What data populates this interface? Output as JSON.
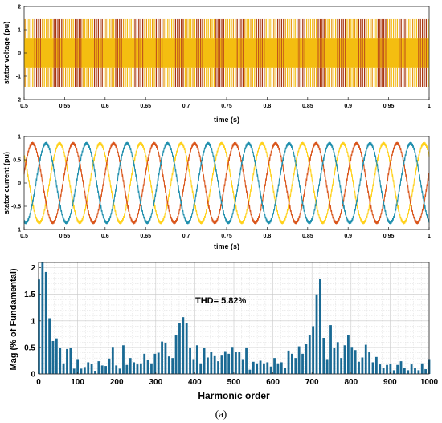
{
  "caption": "(a)",
  "colors": {
    "phase_a": "#ffd11a",
    "phase_b": "#d9541a",
    "phase_c": "#1f8fad",
    "pwm_light": "#f4be10",
    "pwm_dark": "#a8350f",
    "bar": "#1a6a94",
    "thd_text": "#000000"
  },
  "chart_data": [
    {
      "type": "line",
      "title": "",
      "xlabel": "time (s)",
      "ylabel": "stator voltage (pu)",
      "xlim": [
        0.5,
        1.0
      ],
      "ylim": [
        -2,
        2
      ],
      "xticks": [
        "0.5",
        "0.55",
        "0.6",
        "0.65",
        "0.7",
        "0.75",
        "0.8",
        "0.85",
        "0.9",
        "0.95",
        "1"
      ],
      "yticks": [
        "-2",
        "-1",
        "0",
        "1",
        "2"
      ],
      "grid": false,
      "signal": "three-phase PWM line voltage, levels +/-1.45 and +/-0.65 pu, fundamental 20 Hz",
      "levels": [
        1.45,
        0.65,
        -0.65,
        -1.45
      ],
      "fundamental_hz": 20
    },
    {
      "type": "line",
      "title": "",
      "xlabel": "time (s)",
      "ylabel": "stator current (pu)",
      "xlim": [
        0.5,
        1.0
      ],
      "ylim": [
        -1,
        1
      ],
      "xticks": [
        "0.5",
        "0.55",
        "0.6",
        "0.65",
        "0.7",
        "0.75",
        "0.8",
        "0.85",
        "0.9",
        "0.95",
        "1"
      ],
      "yticks": [
        "-1",
        "-0.5",
        "0",
        "0.5",
        "1"
      ],
      "grid": false,
      "series": [
        {
          "phase_deg": 135,
          "amplitude": 0.85,
          "frequency_hz": 20
        },
        {
          "phase_deg": 15,
          "amplitude": 0.85,
          "frequency_hz": 20
        },
        {
          "phase_deg": 255,
          "amplitude": 0.85,
          "frequency_hz": 20
        }
      ]
    },
    {
      "type": "bar",
      "title": "",
      "xlabel": "Harmonic order",
      "ylabel": "Mag (% of Fundamental)",
      "annotation": "THD= 5.82%",
      "xlim": [
        0,
        1000
      ],
      "ylim": [
        0,
        2.1
      ],
      "xticks": [
        "0",
        "100",
        "200",
        "300",
        "400",
        "500",
        "600",
        "700",
        "800",
        "900",
        "1000"
      ],
      "yticks": [
        "0",
        "0.5",
        "1",
        "1.5",
        "2"
      ],
      "grid": true,
      "x": [
        1,
        10,
        19,
        28,
        37,
        46,
        55,
        64,
        73,
        82,
        91,
        100,
        109,
        118,
        127,
        136,
        145,
        154,
        163,
        172,
        181,
        190,
        199,
        208,
        217,
        226,
        235,
        244,
        253,
        262,
        271,
        280,
        289,
        298,
        307,
        316,
        325,
        334,
        343,
        352,
        361,
        370,
        379,
        388,
        397,
        406,
        415,
        424,
        433,
        442,
        451,
        460,
        469,
        478,
        487,
        496,
        505,
        514,
        523,
        532,
        541,
        550,
        559,
        568,
        577,
        586,
        595,
        604,
        613,
        622,
        631,
        640,
        649,
        658,
        667,
        676,
        685,
        694,
        703,
        712,
        721,
        730,
        739,
        748,
        757,
        766,
        775,
        784,
        793,
        802,
        811,
        820,
        829,
        838,
        847,
        856,
        865,
        874,
        883,
        892,
        901,
        910,
        919,
        928,
        937,
        946,
        955,
        964,
        973,
        982,
        991,
        1000
      ],
      "values": [
        1.78,
        2.1,
        1.92,
        1.05,
        0.62,
        0.67,
        0.49,
        0.2,
        0.47,
        0.49,
        0.1,
        0.28,
        0.1,
        0.13,
        0.22,
        0.19,
        0.06,
        0.24,
        0.16,
        0.15,
        0.29,
        0.51,
        0.16,
        0.1,
        0.54,
        0.17,
        0.3,
        0.22,
        0.18,
        0.2,
        0.38,
        0.27,
        0.2,
        0.38,
        0.4,
        0.61,
        0.59,
        0.33,
        0.3,
        0.74,
        0.96,
        1.07,
        0.96,
        0.5,
        0.28,
        0.54,
        0.2,
        0.49,
        0.31,
        0.41,
        0.35,
        0.24,
        0.36,
        0.43,
        0.38,
        0.51,
        0.41,
        0.41,
        0.28,
        0.5,
        0.08,
        0.23,
        0.2,
        0.25,
        0.2,
        0.22,
        0.14,
        0.3,
        0.2,
        0.22,
        0.11,
        0.44,
        0.38,
        0.3,
        0.52,
        0.38,
        0.56,
        0.74,
        0.9,
        1.5,
        1.79,
        0.68,
        0.28,
        0.92,
        0.49,
        0.6,
        0.3,
        0.54,
        0.74,
        0.51,
        0.45,
        0.23,
        0.31,
        0.55,
        0.41,
        0.22,
        0.32,
        0.18,
        0.12,
        0.17,
        0.19,
        0.07,
        0.17,
        0.24,
        0.12,
        0.07,
        0.18,
        0.12,
        0.07,
        0.2,
        0.09,
        0.28
      ]
    }
  ]
}
